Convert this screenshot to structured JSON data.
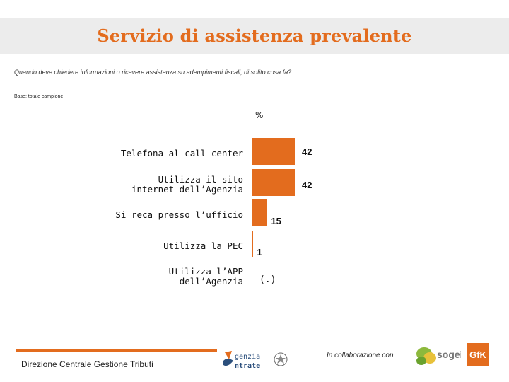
{
  "title": "Servizio di assistenza prevalente",
  "question": "Quando deve chiedere informazioni o ricevere assistenza su adempimenti fiscali, di solito cosa fa?",
  "base": "Base: totale campione",
  "chart_data": {
    "type": "bar",
    "orientation": "horizontal",
    "unit_label": "%",
    "categories": [
      "Telefona al call center",
      "Utilizza il sito internet dell’Agenzia",
      "Si reca presso l’ufficio",
      "Utilizza la PEC",
      "Utilizza l’APP dell’Agenzia"
    ],
    "values": [
      42,
      42,
      15,
      1,
      0
    ],
    "value_labels": [
      "42",
      "42",
      "15",
      "1",
      "(.)"
    ],
    "xlim": [
      0,
      100
    ],
    "color": "#e36c1e",
    "grid": false
  },
  "footer": {
    "department": "Direzione Centrale Gestione Tributi",
    "collab": "In collaborazione con",
    "agenzia_logo_text": [
      "genzia",
      "ntrate"
    ],
    "sogei_logo_text": "sogei",
    "gfk_logo_text": "GfK"
  },
  "colors": {
    "accent": "#e36c1e",
    "band": "#ececec"
  }
}
